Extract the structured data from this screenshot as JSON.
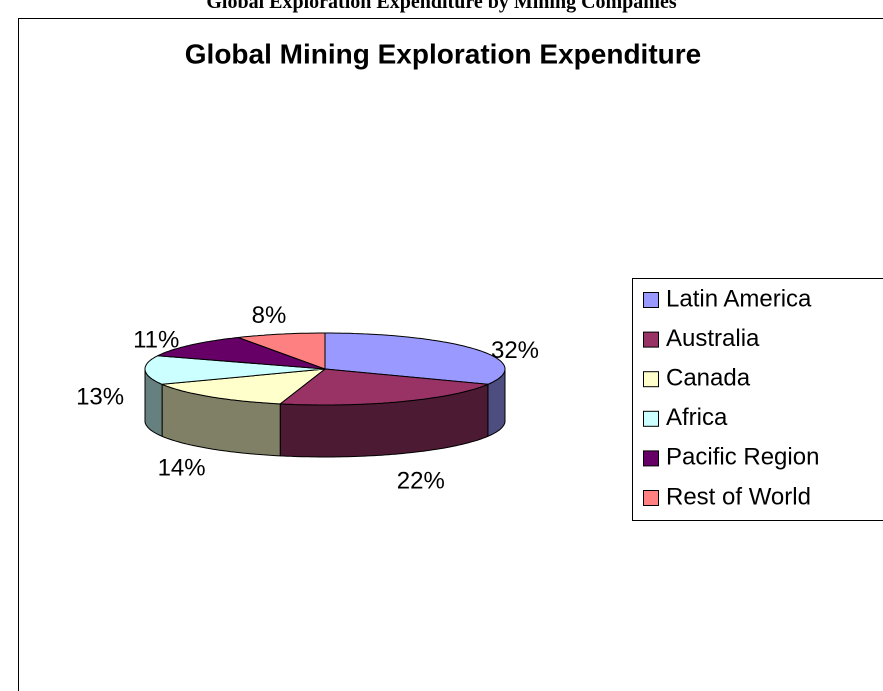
{
  "caption": "Global Exploration Expenditure by Mining Companies",
  "chart_data": {
    "type": "pie",
    "title": "Global Mining Exploration Expenditure",
    "categories": [
      "Latin America",
      "Australia",
      "Canada",
      "Africa",
      "Pacific Region",
      "Rest of World"
    ],
    "values": [
      32,
      22,
      14,
      13,
      11,
      8
    ],
    "value_labels": [
      "32%",
      "22%",
      "14%",
      "13%",
      "11%",
      "8%"
    ],
    "colors": [
      "#9999ff",
      "#993366",
      "#ffffcc",
      "#ccffff",
      "#660066",
      "#ff8080"
    ],
    "legend": "right"
  }
}
